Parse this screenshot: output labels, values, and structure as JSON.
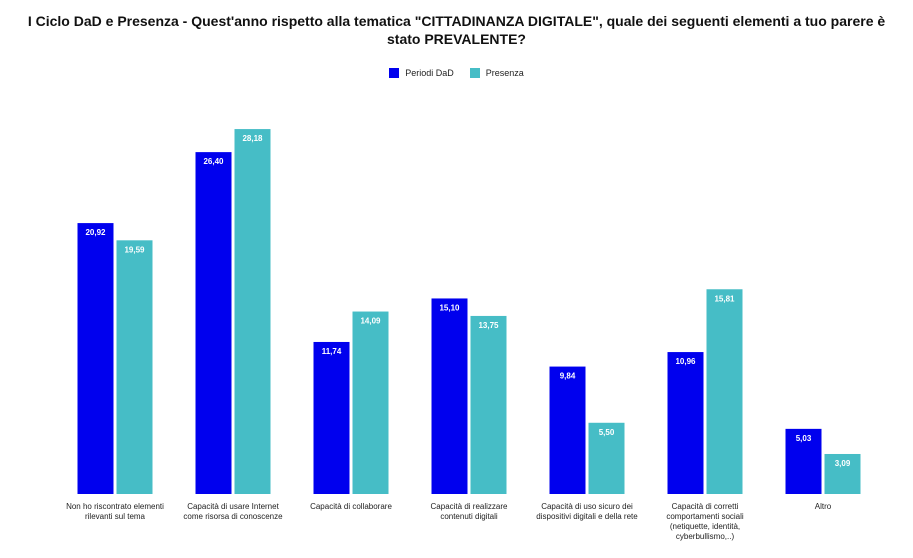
{
  "chart_data": {
    "type": "bar",
    "title_lines": [
      "I Ciclo DaD e Presenza - Quest'anno rispetto alla tematica \"CITTADINANZA DIGITALE\", quale dei seguenti elementi a tuo parere è",
      "stato PREVALENTE?"
    ],
    "categories": [
      [
        "Non ho riscontrato elementi",
        "rilevanti sul tema"
      ],
      [
        "Capacità di usare Internet",
        "come risorsa di conoscenze"
      ],
      [
        "Capacità di collaborare"
      ],
      [
        "Capacità di realizzare",
        "contenuti digitali"
      ],
      [
        "Capacità di uso sicuro dei",
        "dispositivi digitali e della rete"
      ],
      [
        "Capacità di corretti",
        "comportamenti sociali",
        "(netiquette, identità,",
        "cyberbullismo,..)"
      ],
      [
        "Altro"
      ]
    ],
    "series": [
      {
        "name": "Periodi DaD",
        "color": "#0000ee",
        "values": [
          20.92,
          26.4,
          11.74,
          15.1,
          9.84,
          10.96,
          5.03
        ],
        "labels": [
          "20,92",
          "26,40",
          "11,74",
          "15,10",
          "9,84",
          "10,96",
          "5,03"
        ]
      },
      {
        "name": "Presenza",
        "color": "#46bdc6",
        "values": [
          19.59,
          28.18,
          14.09,
          13.75,
          5.5,
          15.81,
          3.09
        ],
        "labels": [
          "19,59",
          "28,18",
          "14,09",
          "13,75",
          "5,50",
          "15,81",
          "3,09"
        ]
      }
    ],
    "ylim": [
      0,
      29
    ],
    "grid": false,
    "legend_position": "top-center"
  }
}
